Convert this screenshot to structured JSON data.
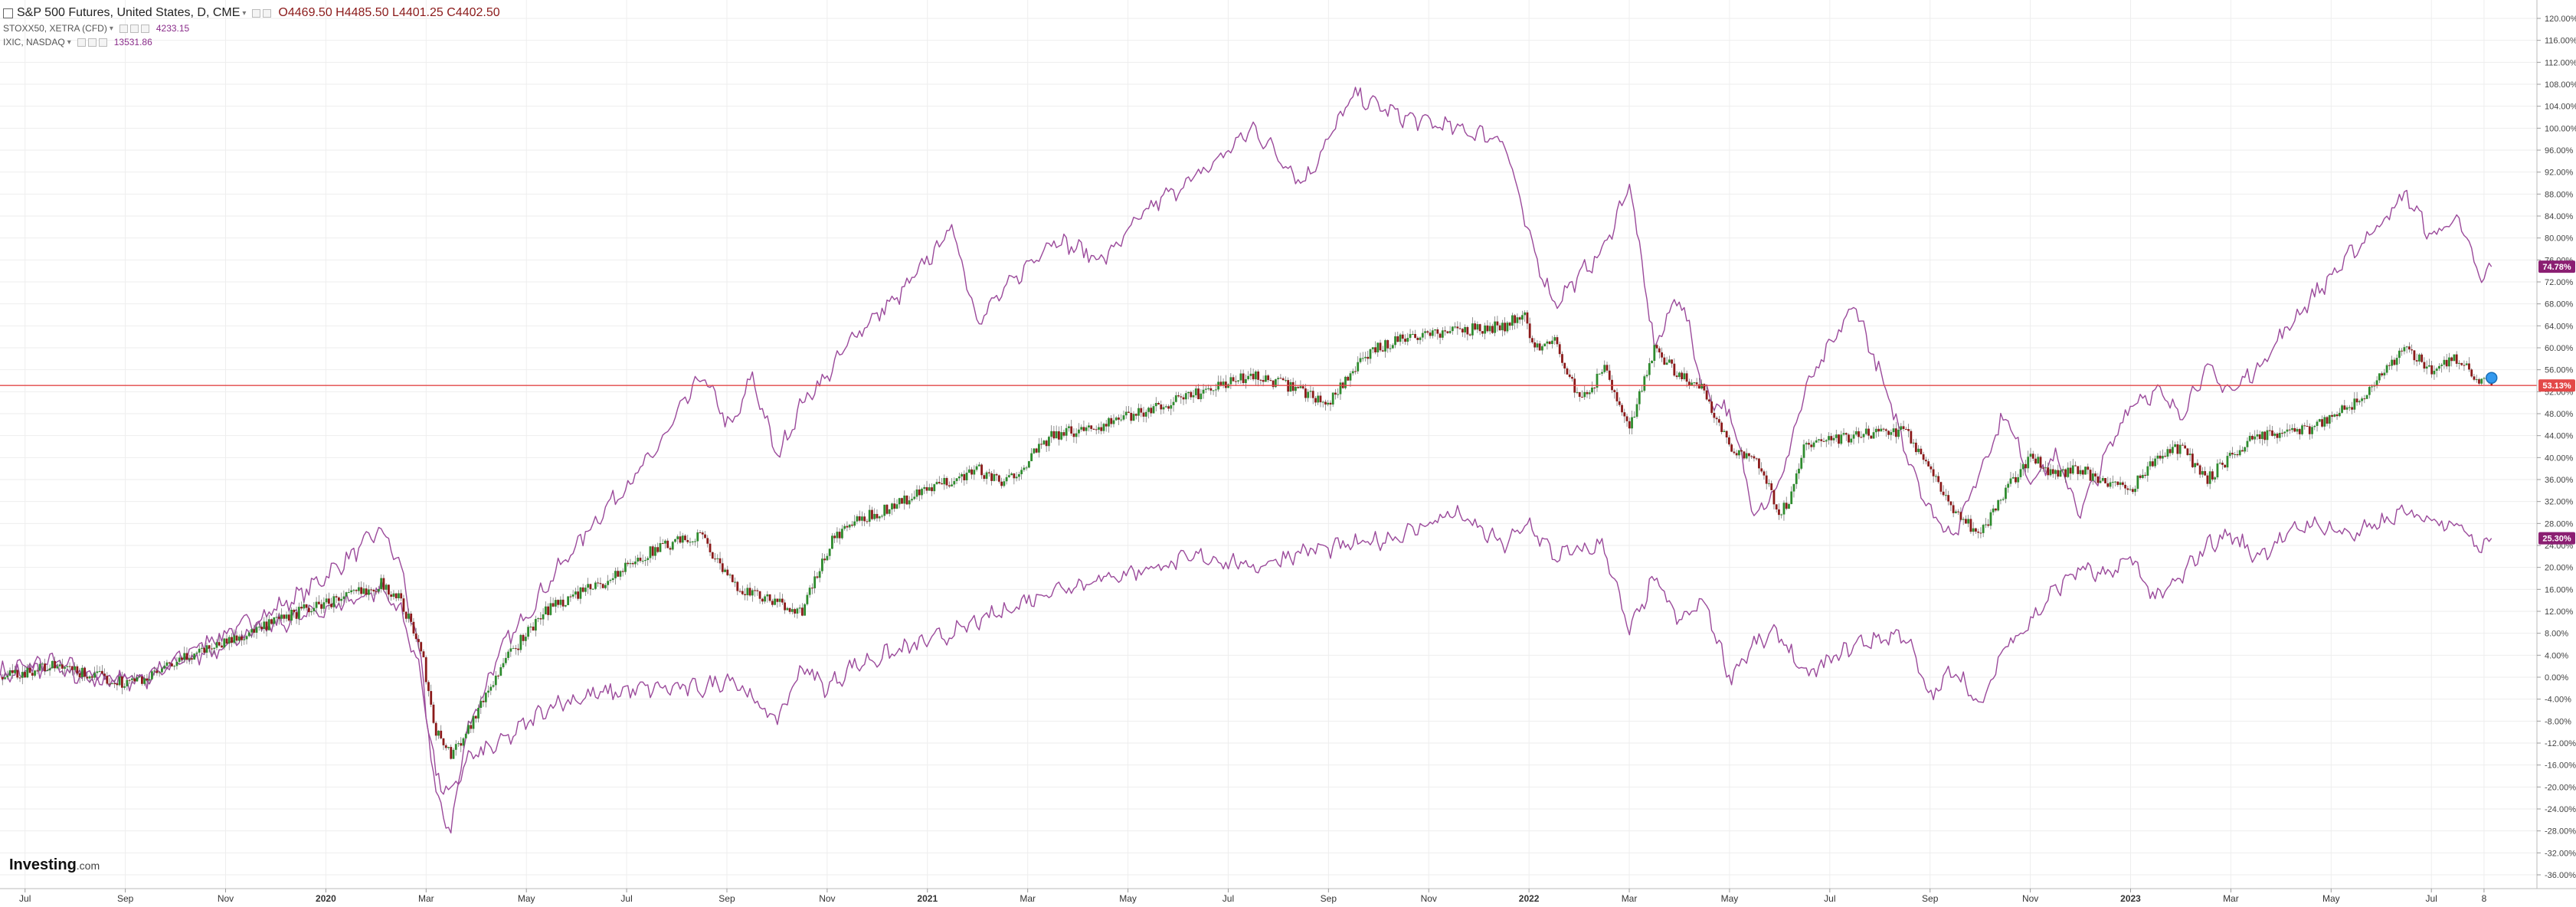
{
  "legend": {
    "main": {
      "title": "S&P 500 Futures, United States, D, CME",
      "open_key": "O",
      "open": "4469.50",
      "high_key": "H",
      "high": "4485.50",
      "low_key": "L",
      "low": "4401.25",
      "close_key": "C",
      "close": "4402.50"
    },
    "compare1": {
      "title": "STOXX50, XETRA (CFD)",
      "value": "4233.15"
    },
    "compare2": {
      "title": "IXIC, NASDAQ",
      "value": "13531.86"
    }
  },
  "brand": {
    "name": "Investing",
    "suffix": ".com"
  },
  "colors": {
    "up": "#2e8b2e",
    "down": "#8b1a1a",
    "compare": "#9b4a9b",
    "badge": "#8b1f72",
    "current": "#e34848",
    "grid": "#eeeeee"
  },
  "chart_data": {
    "type": "line",
    "yaxis": {
      "min": -36,
      "max": 120,
      "step": 4,
      "unit": "%",
      "position": "right",
      "tick_labels": [
        "120.00%",
        "116.00%",
        "112.00%",
        "108.00%",
        "104.00%",
        "100.00%",
        "96.00%",
        "92.00%",
        "88.00%",
        "84.00%",
        "80.00%",
        "76.00%",
        "72.00%",
        "68.00%",
        "64.00%",
        "60.00%",
        "56.00%",
        "52.00%",
        "48.00%",
        "44.00%",
        "40.00%",
        "36.00%",
        "32.00%",
        "28.00%",
        "24.00%",
        "20.00%",
        "16.00%",
        "12.00%",
        "8.00%",
        "4.00%",
        "0.00%",
        "-4.00%",
        "-8.00%",
        "-12.00%",
        "-16.00%",
        "-20.00%",
        "-24.00%",
        "-28.00%",
        "-32.00%",
        "-36.00%"
      ]
    },
    "x_labels": [
      "Jul",
      "Sep",
      "Nov",
      "2020",
      "Mar",
      "May",
      "Jul",
      "Sep",
      "Nov",
      "2021",
      "Mar",
      "May",
      "Jul",
      "Sep",
      "Nov",
      "2022",
      "Mar",
      "May",
      "Jul",
      "Sep",
      "Nov",
      "2023",
      "Mar",
      "May",
      "Jul",
      "8"
    ],
    "x_label_positions": [
      0.5,
      2.5,
      4.5,
      6.5,
      8.5,
      10.5,
      12.5,
      14.5,
      16.5,
      18.5,
      20.5,
      22.5,
      24.5,
      26.5,
      28.5,
      30.5,
      32.5,
      34.5,
      36.5,
      38.5,
      40.5,
      42.5,
      44.5,
      46.5,
      48.5,
      49.55
    ],
    "x_range": [
      0,
      50.3
    ],
    "x_bold_labels": [
      "2020",
      "2021",
      "2022",
      "2023"
    ],
    "current_value": {
      "value": 53.13,
      "label": "53.13%"
    },
    "badges": [
      {
        "series": "IXIC, NASDAQ",
        "label": "74.78%",
        "value": 74.78
      },
      {
        "series": "STOXX50, XETRA (CFD)",
        "label": "25.30%",
        "value": 25.3
      }
    ],
    "series": [
      {
        "name": "S&P 500 Futures, United States, D, CME",
        "style": "candlestick",
        "x": [
          0,
          1,
          2,
          2.5,
          3,
          4,
          5,
          6,
          7,
          7.6,
          8,
          8.4,
          8.7,
          9,
          9.3,
          10,
          10.5,
          11,
          12,
          13,
          14,
          14.5,
          15,
          16,
          16.6,
          17,
          18,
          19,
          19.5,
          20,
          21,
          22,
          23,
          24,
          25,
          26,
          26.5,
          27,
          27.5,
          28,
          29,
          30,
          30.4,
          30.6,
          31,
          31.5,
          32,
          32.5,
          33,
          33.5,
          34,
          34.5,
          35,
          35.5,
          35.7,
          36,
          37,
          38,
          38.5,
          39,
          39.5,
          40,
          40.5,
          41,
          41.5,
          42,
          42.5,
          43,
          43.5,
          44,
          44.5,
          45,
          46,
          47,
          48,
          48.5,
          49,
          49.5,
          49.7
        ],
        "values": [
          0,
          2,
          0,
          -1,
          0,
          5,
          8,
          12,
          15,
          17,
          14,
          5,
          -10,
          -14,
          -10,
          2,
          8,
          13,
          17,
          23,
          26,
          18,
          15,
          12,
          25,
          28,
          32,
          36,
          38,
          35,
          44,
          46,
          49,
          52,
          55,
          52,
          50,
          56,
          60,
          62,
          63,
          64,
          66,
          60,
          62,
          50,
          56,
          45,
          60,
          55,
          52,
          42,
          40,
          30,
          32,
          42,
          44,
          45,
          38,
          30,
          26,
          34,
          40,
          37,
          38,
          35,
          34,
          40,
          42,
          36,
          40,
          44,
          45,
          50,
          60,
          56,
          58,
          54,
          53.13
        ]
      },
      {
        "name": "IXIC, NASDAQ",
        "style": "line",
        "x": [
          0,
          1,
          2,
          3,
          4,
          5,
          6,
          7,
          7.6,
          8,
          8.4,
          8.7,
          9,
          9.3,
          10,
          11,
          12,
          13,
          14,
          14.6,
          15,
          15.5,
          16,
          16.6,
          17,
          18,
          19,
          19.5,
          20,
          21,
          22,
          23,
          24,
          25,
          26,
          27,
          28,
          29,
          30,
          30.5,
          31,
          32,
          32.5,
          33,
          33.5,
          34,
          34.5,
          35,
          35.5,
          36,
          37,
          37.5,
          38,
          38.5,
          39,
          39.5,
          40,
          40.5,
          41,
          41.5,
          42,
          42.5,
          43,
          43.5,
          44,
          44.5,
          45,
          46,
          47,
          48,
          48.5,
          49,
          49.5,
          49.7
        ],
        "values": [
          1,
          3,
          0,
          0,
          6,
          10,
          15,
          22,
          27,
          20,
          2,
          -22,
          -28,
          -10,
          5,
          18,
          30,
          40,
          55,
          45,
          55,
          40,
          50,
          56,
          62,
          70,
          82,
          65,
          70,
          80,
          76,
          86,
          92,
          100,
          90,
          106,
          102,
          100,
          98,
          80,
          68,
          78,
          90,
          60,
          70,
          52,
          48,
          30,
          35,
          52,
          68,
          55,
          42,
          30,
          26,
          38,
          48,
          36,
          40,
          30,
          40,
          50,
          52,
          48,
          56,
          52,
          56,
          68,
          78,
          88,
          80,
          84,
          72,
          74.78
        ]
      },
      {
        "name": "STOXX50, XETRA (CFD)",
        "style": "line",
        "x": [
          0,
          1,
          2,
          3,
          4,
          5,
          6,
          7,
          7.6,
          8,
          8.4,
          8.7,
          9,
          9.3,
          10,
          11,
          12,
          13,
          14,
          14.6,
          15,
          15.5,
          16,
          16.5,
          17,
          18,
          19,
          20,
          21,
          22,
          23,
          24,
          25,
          26,
          27,
          28,
          29,
          30,
          30.5,
          31,
          32,
          32.5,
          33,
          33.5,
          34,
          34.5,
          35,
          35.5,
          36,
          37,
          38,
          38.5,
          39,
          39.5,
          40,
          40.5,
          41,
          41.5,
          42,
          42.5,
          43,
          43.5,
          44,
          44.5,
          45,
          46,
          47,
          48,
          49,
          49.5,
          49.7
        ],
        "values": [
          0,
          2,
          -1,
          0,
          4,
          8,
          11,
          14,
          16,
          12,
          0,
          -18,
          -22,
          -15,
          -12,
          -5,
          -3,
          -2,
          -2,
          0,
          -4,
          -8,
          2,
          -2,
          2,
          5,
          8,
          12,
          16,
          18,
          20,
          22,
          20,
          23,
          24,
          26,
          30,
          24,
          28,
          22,
          24,
          8,
          18,
          10,
          14,
          0,
          6,
          8,
          0,
          6,
          8,
          -4,
          2,
          -6,
          6,
          10,
          16,
          20,
          18,
          22,
          14,
          18,
          24,
          26,
          22,
          28,
          26,
          30,
          28,
          24,
          25.3
        ]
      }
    ]
  }
}
